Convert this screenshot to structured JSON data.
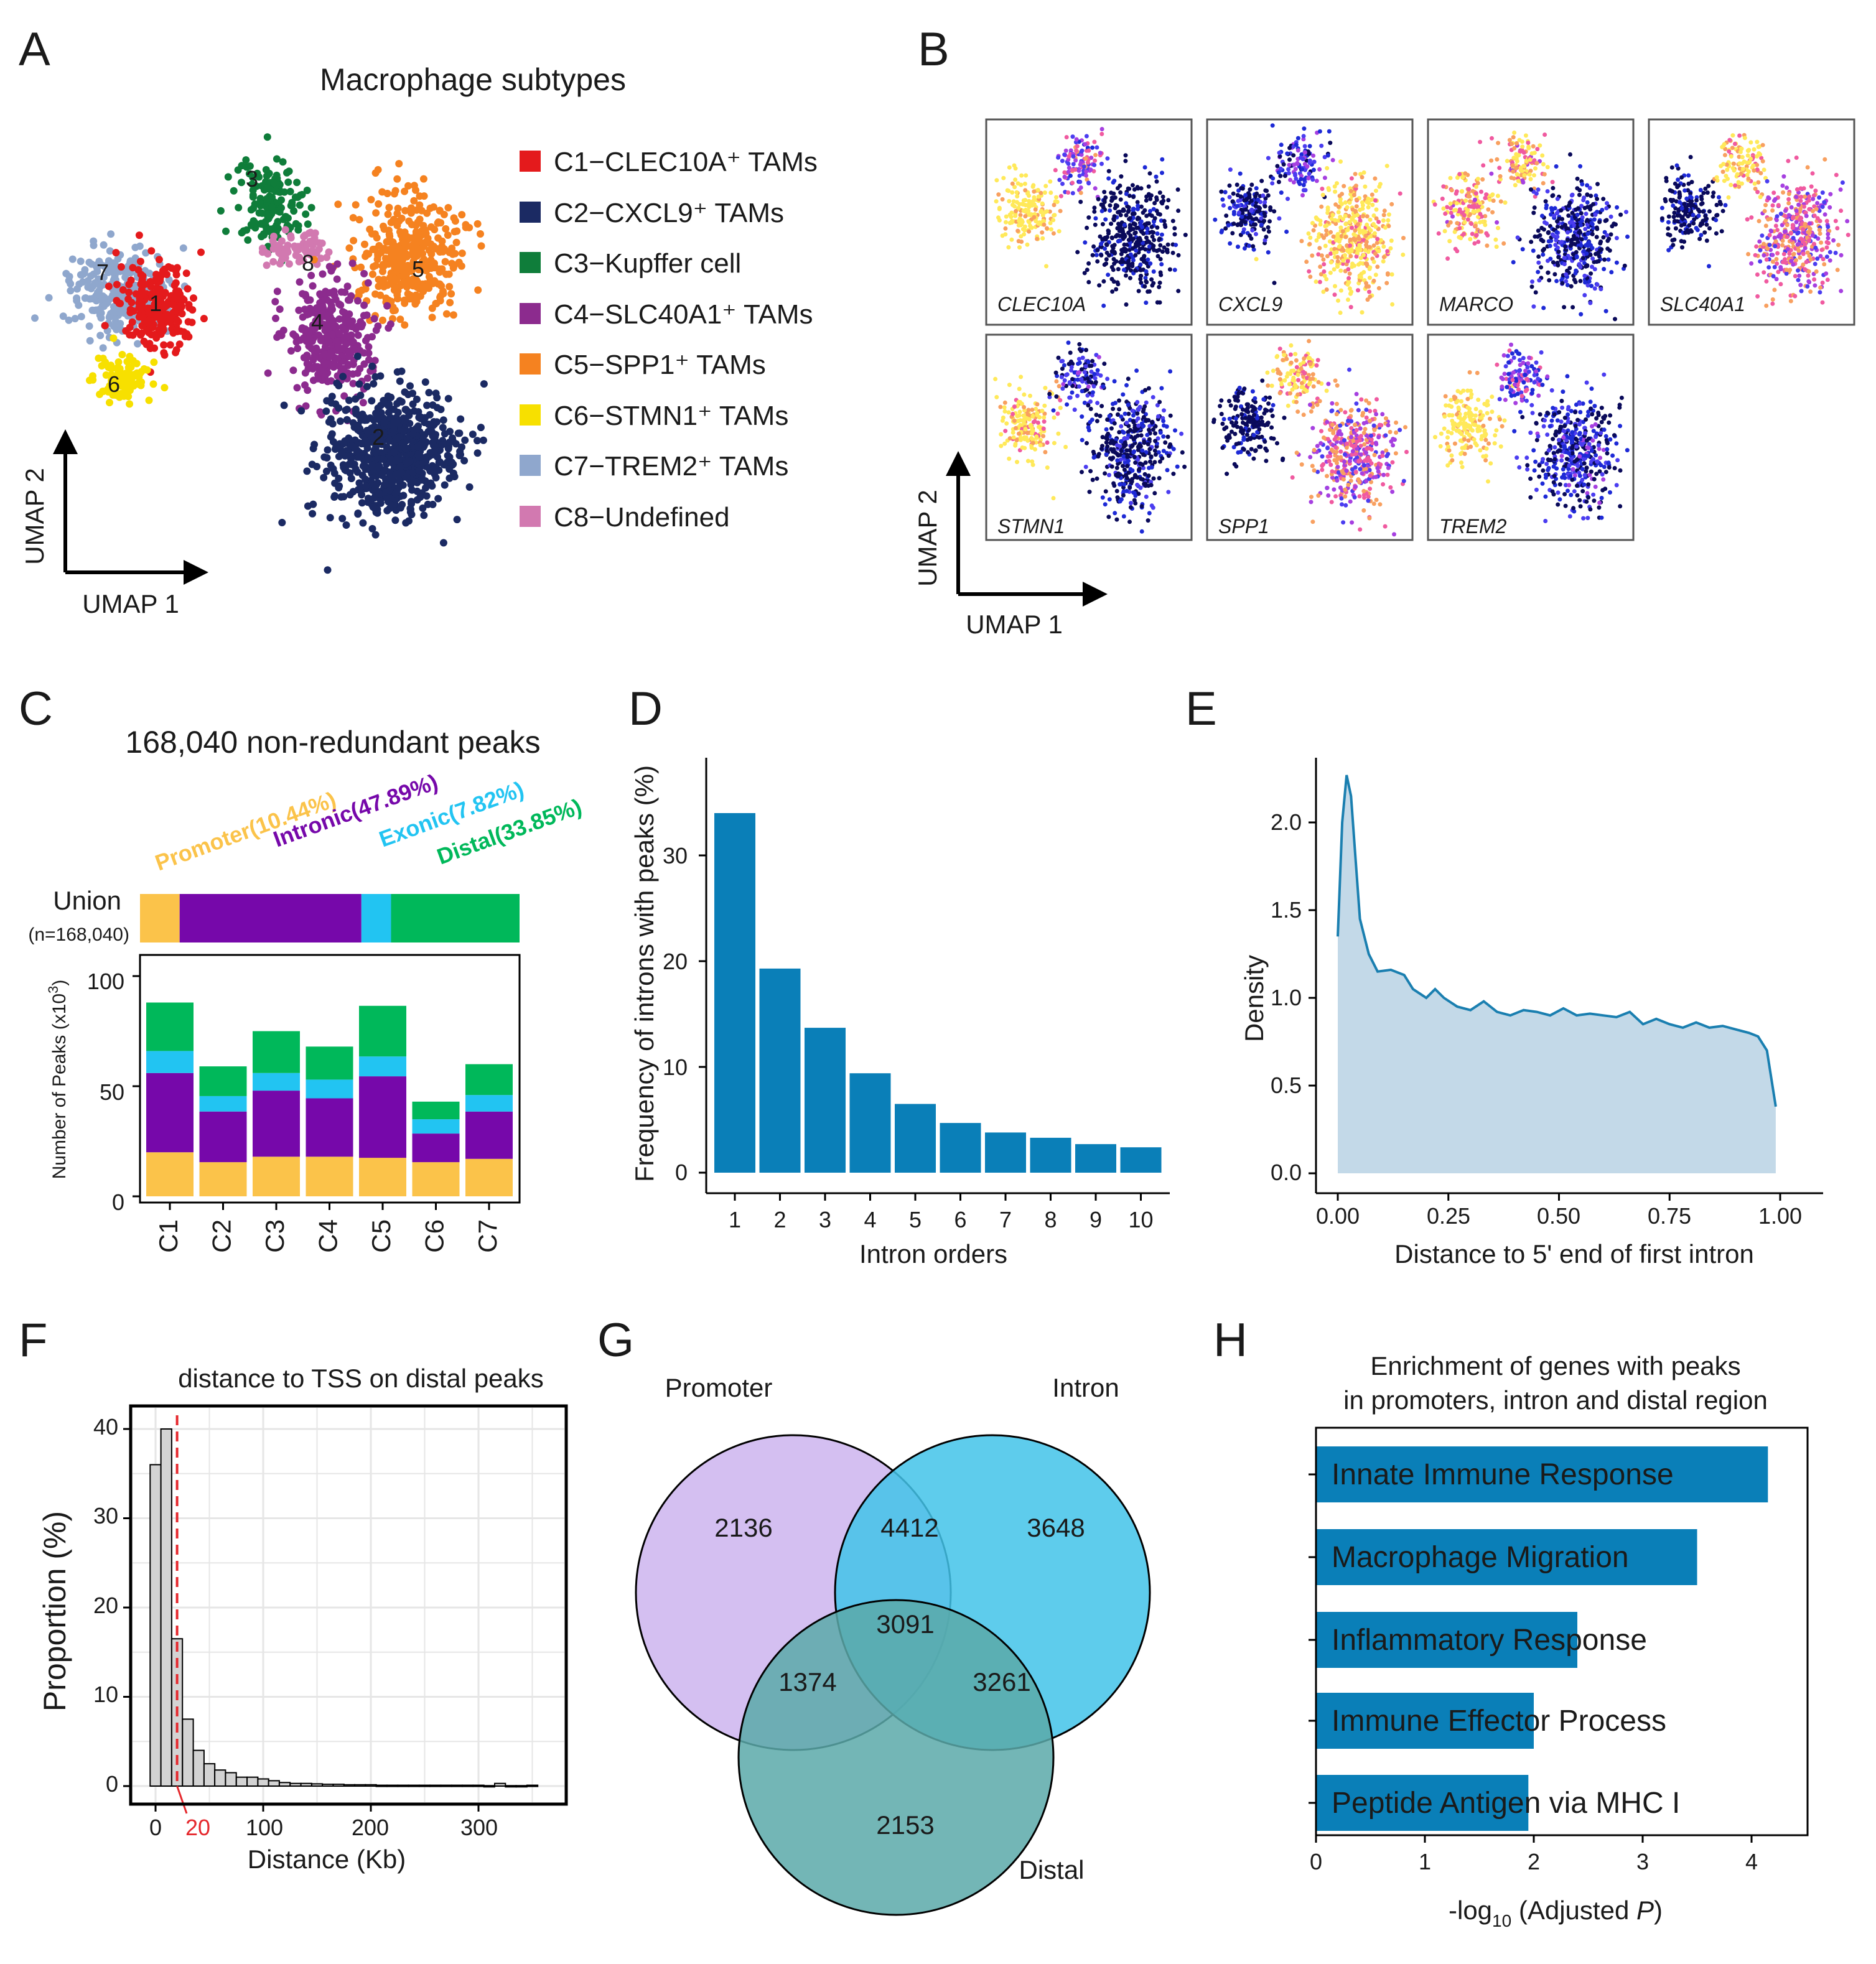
{
  "colors": {
    "C1": "#e41a1c",
    "C2": "#1b2a63",
    "C3": "#0f7d3a",
    "C4": "#8c2b8e",
    "C5": "#f58220",
    "C6": "#f7e000",
    "C7": "#8fa7cd",
    "C8": "#d279b0",
    "promoter": "#fbc34a",
    "intronic": "#7608aa",
    "exonic": "#22c4f2",
    "distal": "#00b85a",
    "bar_blue": "#0a7fb8",
    "density_fill": "#c3d9e8",
    "density_line": "#1a7fb0",
    "venn_promoter": "#cdb4ee",
    "venn_intron": "#42c3e9",
    "venn_distal": "#5aa9a9",
    "red_dash": "#e5282d"
  },
  "panelA": {
    "letter": "A",
    "title": "Macrophage subtypes",
    "axis_x": "UMAP 1",
    "axis_y": "UMAP 2",
    "legend": [
      {
        "key": "C1",
        "text": "C1−CLEC10A⁺ TAMs"
      },
      {
        "key": "C2",
        "text": "C2−CXCL9⁺ TAMs"
      },
      {
        "key": "C3",
        "text": "C3−Kupffer cell"
      },
      {
        "key": "C4",
        "text": "C4−SLC40A1⁺ TAMs"
      },
      {
        "key": "C5",
        "text": "C5−SPP1⁺ TAMs"
      },
      {
        "key": "C6",
        "text": "C6−STMN1⁺ TAMs"
      },
      {
        "key": "C7",
        "text": "C7−TREM2⁺ TAMs"
      },
      {
        "key": "C8",
        "text": "C8−Undefined"
      }
    ],
    "cluster_labels": [
      "1",
      "2",
      "3",
      "4",
      "5",
      "6",
      "7",
      "8"
    ]
  },
  "panelB": {
    "letter": "B",
    "axis_x": "UMAP 1",
    "axis_y": "UMAP 2",
    "genes": [
      "CLEC10A",
      "CXCL9",
      "MARCO",
      "SLC40A1",
      "STMN1",
      "SPP1",
      "TREM2"
    ]
  },
  "panelC": {
    "letter": "C",
    "title": "168,040 non-redundant peaks",
    "union_label": "Union",
    "union_n": "(n=168,040)",
    "categories_text": [
      {
        "key": "promoter",
        "text": "Promoter(10.44%)"
      },
      {
        "key": "intronic",
        "text": "Intronic(47.89%)"
      },
      {
        "key": "exonic",
        "text": "Exonic(7.82%)"
      },
      {
        "key": "distal",
        "text": "Distal(33.85%)"
      }
    ],
    "ylabel_prefix": "Number of Peaks (x10",
    "ylabel_sup": "3",
    "ylabel_suffix": ")",
    "yticks": [
      "0",
      "50",
      "100"
    ]
  },
  "panelD": {
    "letter": "D",
    "xlabel": "Intron orders",
    "ylabel": "Frequency of introns with peaks (%)",
    "yticks": [
      "0",
      "10",
      "20",
      "30"
    ]
  },
  "panelE": {
    "letter": "E",
    "xlabel": "Distance to 5' end of first intron",
    "ylabel": "Density",
    "xticks": [
      "0.00",
      "0.25",
      "0.50",
      "0.75",
      "1.00"
    ],
    "yticks": [
      "0.0",
      "0.5",
      "1.0",
      "1.5",
      "2.0"
    ]
  },
  "panelF": {
    "letter": "F",
    "title": "distance to TSS on distal peaks",
    "xlabel": "Distance (Kb)",
    "ylabel": "Proportion (%)",
    "xticks": [
      "0",
      "100",
      "200",
      "300"
    ],
    "yticks": [
      "0",
      "10",
      "20",
      "30",
      "40"
    ],
    "marker_label": "20"
  },
  "panelG": {
    "letter": "G",
    "set_labels": [
      "Promoter",
      "Intron",
      "Distal"
    ],
    "regions": {
      "promoter_only": "2136",
      "intron_only": "3648",
      "distal_only": "2153",
      "promoter_intron": "4412",
      "promoter_distal": "1374",
      "intron_distal": "3261",
      "all_three": "3091"
    }
  },
  "panelH": {
    "letter": "H",
    "title_line1": "Enrichment of genes with peaks",
    "title_line2": "in promoters, intron and distal region",
    "xlabel_prefix": "-log",
    "xlabel_sub": "10",
    "xlabel_mid": " (Adjusted ",
    "xlabel_p": "P",
    "xlabel_suffix": ")",
    "xticks": [
      "0",
      "1",
      "2",
      "3",
      "4"
    ]
  },
  "chart_data": [
    {
      "type": "bar",
      "id": "C",
      "title": "168,040 non-redundant peaks",
      "categories": [
        "C1",
        "C2",
        "C3",
        "C4",
        "C5",
        "C6",
        "C7"
      ],
      "series": [
        {
          "name": "Promoter",
          "values": [
            20,
            15.5,
            18,
            18,
            17.5,
            15.5,
            17
          ]
        },
        {
          "name": "Intronic",
          "values": [
            36,
            23,
            30,
            26.5,
            37,
            13,
            21.5
          ]
        },
        {
          "name": "Exonic",
          "values": [
            10,
            7,
            8,
            8.5,
            9,
            6.5,
            7.5
          ]
        },
        {
          "name": "Distal",
          "values": [
            22,
            13.5,
            19,
            15,
            23,
            8,
            14
          ]
        }
      ],
      "union_percent": [
        10.44,
        47.89,
        7.82,
        33.85
      ],
      "ylabel": "Number of Peaks (x10^3)",
      "ylim": [
        0,
        105
      ]
    },
    {
      "type": "bar",
      "id": "D",
      "categories": [
        "1",
        "2",
        "3",
        "4",
        "5",
        "6",
        "7",
        "8",
        "9",
        "10"
      ],
      "values": [
        34,
        19.3,
        13.7,
        9.4,
        6.5,
        4.7,
        3.8,
        3.3,
        2.7,
        2.4
      ],
      "xlabel": "Intron orders",
      "ylabel": "Frequency of introns with peaks (%)",
      "ylim": [
        0,
        38
      ]
    },
    {
      "type": "area",
      "id": "E",
      "x": [
        0.0,
        0.01,
        0.02,
        0.03,
        0.04,
        0.05,
        0.07,
        0.09,
        0.12,
        0.15,
        0.17,
        0.2,
        0.22,
        0.24,
        0.27,
        0.3,
        0.33,
        0.36,
        0.39,
        0.42,
        0.45,
        0.48,
        0.51,
        0.54,
        0.57,
        0.6,
        0.63,
        0.66,
        0.69,
        0.72,
        0.75,
        0.78,
        0.81,
        0.84,
        0.87,
        0.9,
        0.93,
        0.95,
        0.97,
        0.99
      ],
      "y": [
        1.35,
        2.0,
        2.27,
        2.15,
        1.8,
        1.45,
        1.25,
        1.15,
        1.16,
        1.13,
        1.05,
        1.0,
        1.05,
        1.0,
        0.95,
        0.93,
        0.98,
        0.92,
        0.9,
        0.93,
        0.92,
        0.9,
        0.94,
        0.9,
        0.91,
        0.9,
        0.89,
        0.92,
        0.85,
        0.88,
        0.85,
        0.83,
        0.86,
        0.83,
        0.84,
        0.82,
        0.8,
        0.78,
        0.7,
        0.38
      ],
      "xlabel": "Distance to 5' end of first intron",
      "ylabel": "Density",
      "xlim": [
        -0.05,
        1.05
      ],
      "ylim": [
        -0.1,
        2.4
      ]
    },
    {
      "type": "bar",
      "id": "F",
      "title": "distance to TSS on distal peaks",
      "bin_width_kb": 10,
      "x": [
        0,
        10,
        20,
        30,
        40,
        50,
        60,
        70,
        80,
        90,
        100,
        110,
        120,
        130,
        140,
        150,
        160,
        170,
        180,
        190,
        200,
        210,
        220,
        230,
        240,
        250,
        260,
        270,
        280,
        290,
        300,
        310,
        320,
        330,
        340,
        350
      ],
      "values": [
        36,
        40,
        16.5,
        7.5,
        4,
        2.5,
        1.8,
        1.5,
        1.0,
        1.0,
        0.8,
        0.6,
        0.4,
        0.3,
        0.3,
        0.25,
        0.2,
        0.2,
        0.15,
        0.15,
        0.15,
        0.1,
        0.1,
        0.1,
        0.1,
        0.1,
        0.1,
        0.1,
        0.1,
        0.1,
        0.1,
        0.05,
        0.3,
        0.05,
        0.05,
        0.1
      ],
      "marker_x": 20,
      "xlabel": "Distance (Kb)",
      "ylabel": "Proportion (%)",
      "xlim": [
        -20,
        370
      ],
      "ylim": [
        -2,
        42
      ]
    },
    {
      "type": "bar",
      "id": "H",
      "orientation": "horizontal",
      "categories": [
        "Innate Immune Response",
        "Macrophage Migration",
        "Inflammatory Response",
        "Immune Effector Process",
        "Peptide Antigen via MHC I"
      ],
      "values": [
        4.15,
        3.5,
        2.4,
        2.0,
        1.95
      ],
      "xlabel": "-log10 (Adjusted P)",
      "xlim": [
        0,
        4.5
      ]
    }
  ]
}
